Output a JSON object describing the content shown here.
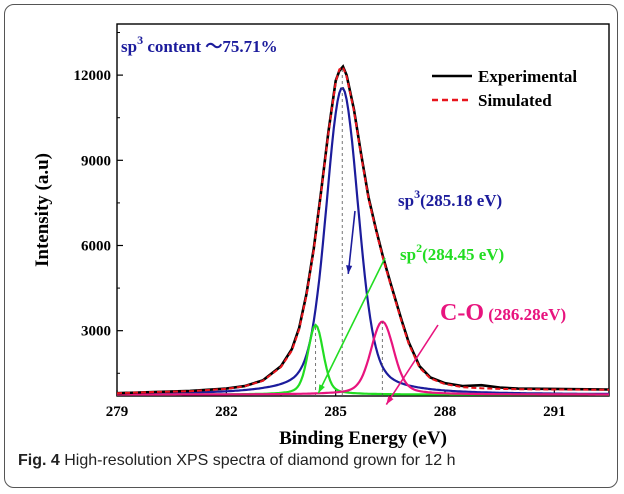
{
  "caption": {
    "label": "Fig. 4",
    "text": " High-resolution XPS spectra of diamond grown for 12 h"
  },
  "chart_data": {
    "type": "line",
    "title": "",
    "xlabel": "Binding Energy (eV)",
    "ylabel": "Intensity (a.u)",
    "xlim": [
      279,
      292.5
    ],
    "ylim": [
      700,
      13800
    ],
    "xticks": [
      279,
      282,
      285,
      288,
      291
    ],
    "yticks": [
      3000,
      6000,
      9000,
      12000
    ],
    "grid": false,
    "legend_position": "top-right",
    "legend": [
      {
        "label": "Experimental",
        "color": "#000000",
        "style": "solid"
      },
      {
        "label": "Simulated",
        "color": "#e8141c",
        "style": "dashed"
      }
    ],
    "annotation_content": {
      "base": "sp",
      "sup": "3",
      "rest": " content ～75.71%"
    },
    "peaks": [
      {
        "name_base": "sp",
        "name_sup": "3",
        "label_rest": "(285.18 eV)",
        "center": 285.18,
        "height": 11550,
        "color": "#1c1c9c"
      },
      {
        "name_base": "sp",
        "name_sup": "2",
        "label_rest": "(284.45 eV)",
        "center": 284.45,
        "height": 3200,
        "color": "#22dd22"
      },
      {
        "name_base": "C-O",
        "name_sup": "",
        "label_rest": " (286.28eV)",
        "center": 286.28,
        "height": 3320,
        "color": "#e8147e"
      }
    ],
    "series": [
      {
        "name": "Experimental",
        "color": "#000000",
        "x": [
          279.0,
          280.0,
          281.0,
          282.0,
          282.5,
          283.0,
          283.5,
          283.8,
          284.0,
          284.2,
          284.4,
          284.6,
          284.8,
          285.0,
          285.1,
          285.2,
          285.3,
          285.5,
          285.7,
          285.9,
          286.1,
          286.3,
          286.5,
          286.8,
          287.0,
          287.3,
          287.6,
          288.0,
          288.5,
          289.0,
          289.5,
          290.0,
          291.0,
          292.5
        ],
        "y": [
          800,
          840,
          880,
          960,
          1050,
          1250,
          1750,
          2350,
          3100,
          4300,
          5900,
          7900,
          10000,
          11800,
          12150,
          12300,
          12000,
          10800,
          9200,
          7700,
          6600,
          5600,
          4700,
          3400,
          2600,
          1750,
          1350,
          1150,
          1050,
          1080,
          1000,
          960,
          950,
          930
        ]
      },
      {
        "name": "Simulated",
        "color": "#e8141c",
        "x": [
          279.0,
          280.0,
          281.0,
          282.0,
          282.5,
          283.0,
          283.5,
          283.8,
          284.0,
          284.2,
          284.4,
          284.6,
          284.8,
          285.0,
          285.1,
          285.2,
          285.3,
          285.5,
          285.7,
          285.9,
          286.1,
          286.3,
          286.5,
          286.8,
          287.0,
          287.3,
          287.6,
          288.0,
          288.5,
          289.0,
          289.5,
          290.0,
          291.0,
          292.5
        ],
        "y": [
          800,
          840,
          870,
          950,
          1040,
          1230,
          1720,
          2300,
          3050,
          4250,
          5850,
          7850,
          9950,
          11750,
          12200,
          12280,
          11950,
          10750,
          9150,
          7650,
          6550,
          5550,
          4650,
          3350,
          2550,
          1700,
          1320,
          1120,
          1010,
          970,
          950,
          940,
          930,
          920
        ]
      }
    ],
    "baseline": 750
  }
}
